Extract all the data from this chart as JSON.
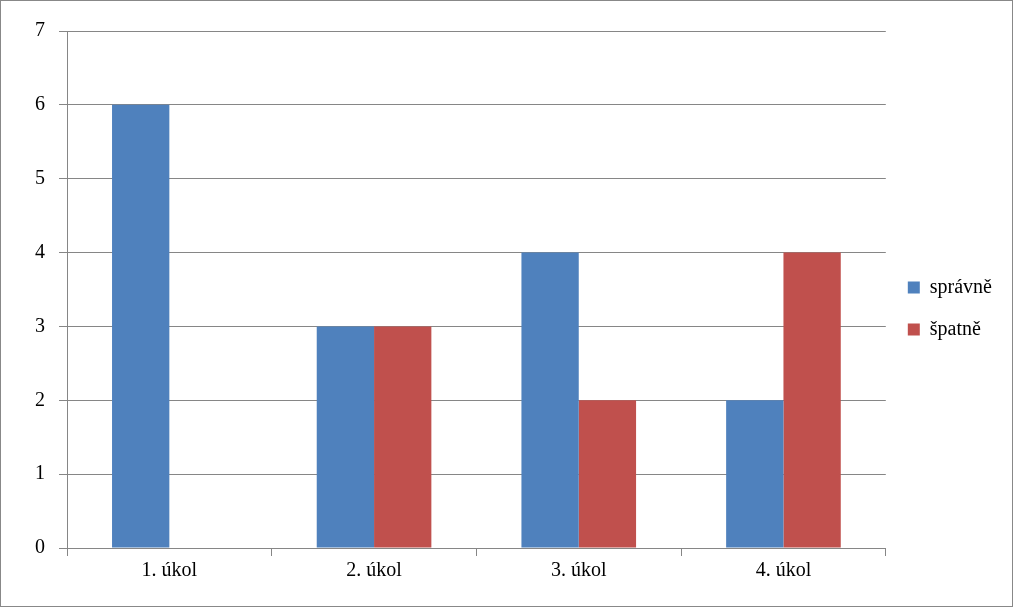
{
  "chart_data": {
    "type": "bar",
    "categories": [
      "1. úkol",
      "2. úkol",
      "3. úkol",
      "4. úkol"
    ],
    "series": [
      {
        "name": "správně",
        "color": "#4f81bd",
        "values": [
          6,
          3,
          4,
          2
        ]
      },
      {
        "name": "špatně",
        "color": "#c0504d",
        "values": [
          0,
          3,
          2,
          4
        ]
      }
    ],
    "ylim": [
      0,
      7
    ],
    "yticks": [
      0,
      1,
      2,
      3,
      4,
      5,
      6,
      7
    ],
    "grid": "y",
    "legend": "right"
  }
}
